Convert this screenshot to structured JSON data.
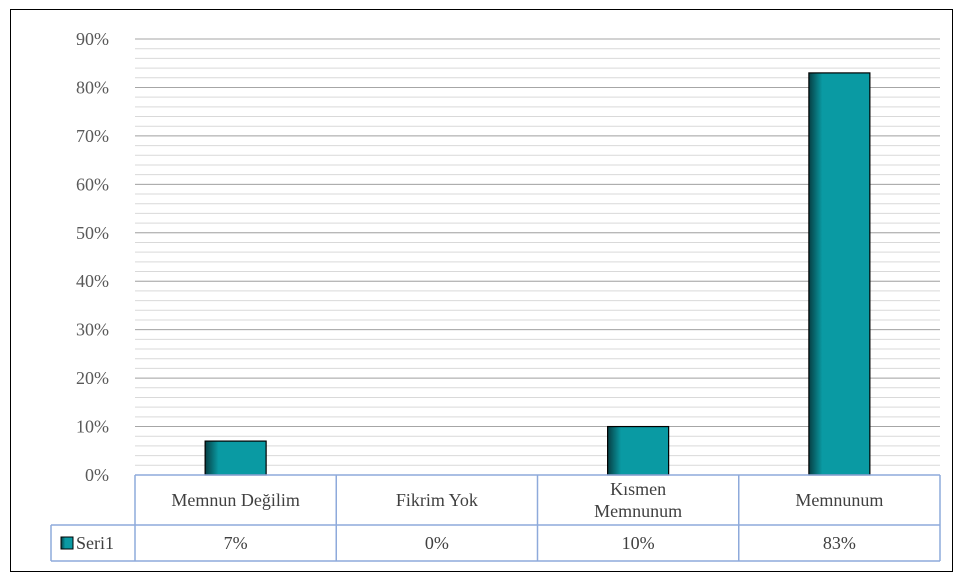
{
  "chart_data": {
    "type": "bar",
    "categories": [
      "Memnun Değilim",
      "Fikrim Yok",
      "Kısmen Memnunum",
      "Memnunum"
    ],
    "category_display": [
      [
        "Memnun Değilim"
      ],
      [
        "Fikrim Yok"
      ],
      [
        "Kısmen",
        "Memnunum"
      ],
      [
        "Memnunum"
      ]
    ],
    "series": [
      {
        "name": "Seri1",
        "values": [
          0.07,
          0.0,
          0.1,
          0.83
        ],
        "display_values": [
          "7%",
          "0%",
          "10%",
          "83%"
        ],
        "color": "#0a9aa3"
      }
    ],
    "ylim": [
      0,
      0.9
    ],
    "y_ticks": [
      0,
      0.1,
      0.2,
      0.3,
      0.4,
      0.5,
      0.6,
      0.7,
      0.8,
      0.9
    ],
    "y_tick_labels": [
      "0%",
      "10%",
      "20%",
      "30%",
      "40%",
      "50%",
      "60%",
      "70%",
      "80%",
      "90%"
    ],
    "minor_gridlines": true,
    "data_table": true,
    "legend_in_table": true,
    "colors": {
      "bar_fill": "#0a9aa3",
      "bar_shade": "#063f44",
      "table_border": "#8eaadb",
      "gridline": "#a6a6a6",
      "minor_gridline": "#d9d9d9"
    }
  }
}
